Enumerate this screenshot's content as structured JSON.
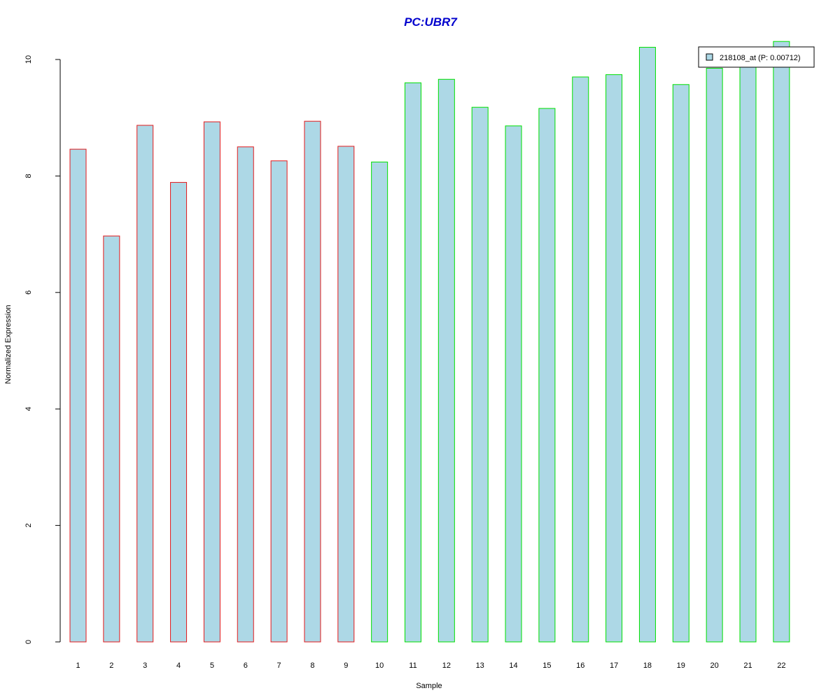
{
  "chart_data": {
    "type": "bar",
    "title": "PC:UBR7",
    "xlabel": "Sample",
    "ylabel": "Normalized Expression",
    "categories": [
      "1",
      "2",
      "3",
      "4",
      "5",
      "6",
      "7",
      "8",
      "9",
      "10",
      "11",
      "12",
      "13",
      "14",
      "15",
      "16",
      "17",
      "18",
      "19",
      "20",
      "21",
      "22"
    ],
    "series": [
      {
        "name": "218108_at (P: 0.00712)",
        "values": [
          8.46,
          6.97,
          8.87,
          7.89,
          8.93,
          8.5,
          8.26,
          8.94,
          8.51,
          8.24,
          9.6,
          9.66,
          9.18,
          8.86,
          9.16,
          9.7,
          9.74,
          10.21,
          9.57,
          9.85,
          9.97,
          10.31
        ]
      }
    ],
    "groups": [
      {
        "samples": [
          1,
          9
        ],
        "border_color": "#e31a1c"
      },
      {
        "samples": [
          10,
          22
        ],
        "border_color": "#00e000"
      }
    ],
    "ylim": [
      0,
      10
    ],
    "y_ticks": [
      0,
      2,
      4,
      6,
      8,
      10
    ],
    "fill_color": "#add8e6",
    "title_color": "#0000cd",
    "grid": false,
    "legend_position": "top-right"
  }
}
